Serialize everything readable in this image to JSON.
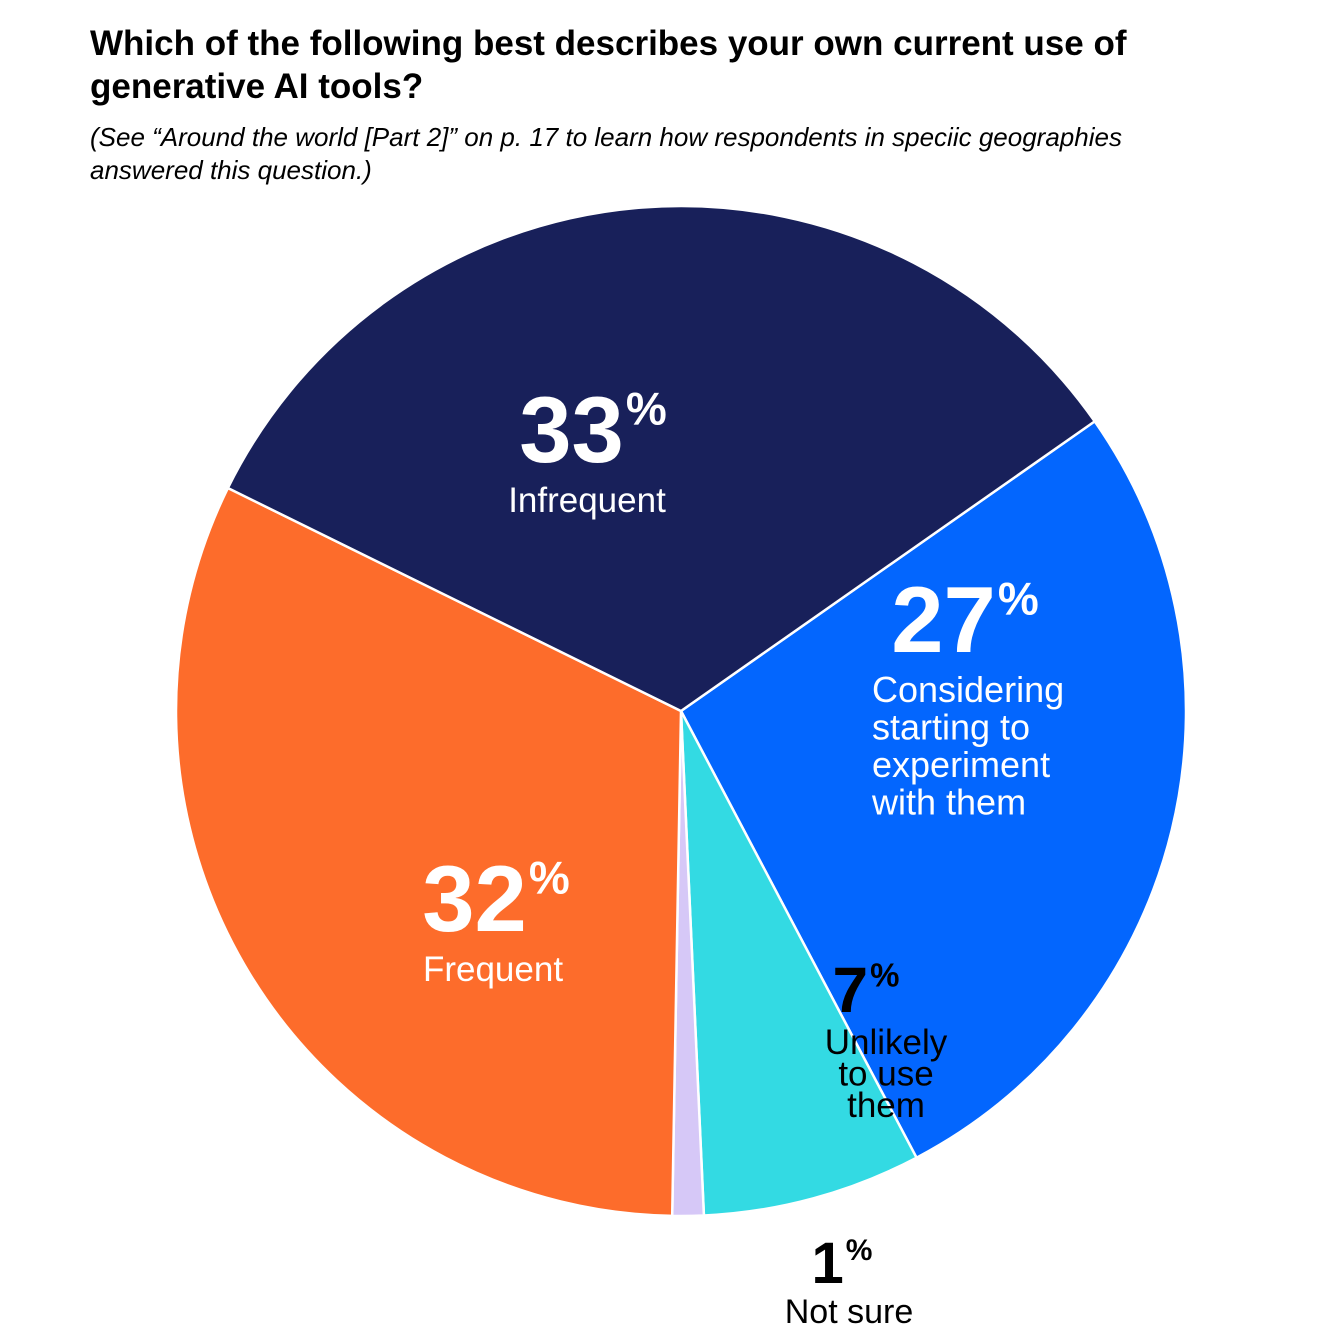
{
  "title": "Which of the following best describes your own current use of generative AI tools?",
  "subtitle": "(See “Around the world [Part 2]” on p. 17 to learn how respondents in speciic geographies answered this question.)",
  "chart_data": {
    "type": "pie",
    "title": "Which of the following best describes your own current use of generative AI tools?",
    "unit": "%",
    "slices": [
      {
        "label": "Considering starting to experiment with them",
        "label_lines": [
          "Considering",
          "starting to",
          "experiment",
          "with them"
        ],
        "value": 27,
        "color": "#0366FE",
        "text_color": "#FFFFFF"
      },
      {
        "label": "Unlikely to use them",
        "label_lines": [
          "Unlikely",
          "to use",
          "them"
        ],
        "value": 7,
        "color": "#33DAE3",
        "text_color": "#000000"
      },
      {
        "label": "Not sure",
        "label_lines": [
          "Not sure"
        ],
        "value": 1,
        "color": "#D6C8F7",
        "text_color": "#000000"
      },
      {
        "label": "Frequent",
        "label_lines": [
          "Frequent"
        ],
        "value": 32,
        "color": "#FD6C2B",
        "text_color": "#FFFFFF"
      },
      {
        "label": "Infrequent",
        "label_lines": [
          "Infrequent"
        ],
        "value": 33,
        "color": "#18205A",
        "text_color": "#FFFFFF"
      }
    ]
  }
}
